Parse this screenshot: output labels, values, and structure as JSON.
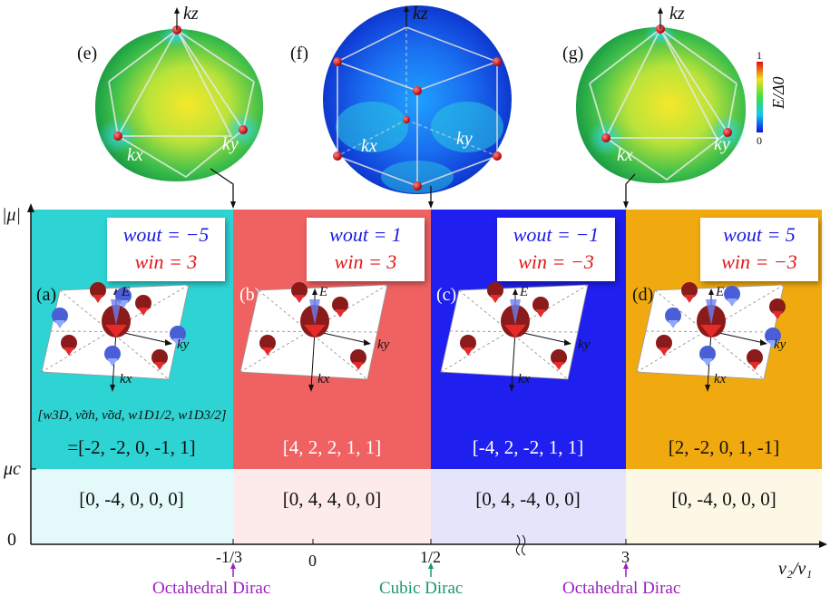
{
  "axes": {
    "y_label": "|μ|",
    "x_label": "v₂/v₁",
    "mu_c": "μc",
    "zero": "0"
  },
  "x_ticks": [
    "-1/3",
    "0",
    "1/2",
    "3"
  ],
  "transitions": [
    {
      "label": "Octahedral Dirac",
      "color": "#9b1fbf"
    },
    {
      "label": "Cubic Dirac",
      "color": "#1a9a6a"
    },
    {
      "label": "Octahedral Dirac",
      "color": "#9b1fbf"
    }
  ],
  "spheres": [
    {
      "label": "(e)",
      "kz": "kz",
      "kx": "kx",
      "ky": "ky"
    },
    {
      "label": "(f)",
      "kz": "kz",
      "kx": "kx",
      "ky": "ky"
    },
    {
      "label": "(g)",
      "kz": "kz",
      "kx": "kx",
      "ky": "ky"
    }
  ],
  "colorbar": {
    "max": "1",
    "min": "0",
    "label": "E/Δ0"
  },
  "vector_header": "[w3D, ν̃σh, ν̃σd, w1D1/2, w1D3/2]",
  "panels": [
    {
      "label": "(a)",
      "color": "#2ed3d3",
      "w_out": "wout = −5",
      "w_in": "win = 3",
      "upper_vec": "=[-2, -2, 0, -1, 1]",
      "lower_vec": "[0, -4, 0, 0, 0]",
      "lower_color": "#e4fafa"
    },
    {
      "label": "(b)",
      "color": "#f06161",
      "w_out": "wout = 1",
      "w_in": "win = 3",
      "upper_vec": "[4, 2, 2, 1, 1]",
      "lower_vec": "[0, 4, 4, 0, 0]",
      "lower_color": "#fdebeb"
    },
    {
      "label": "(c)",
      "color": "#1f1fef",
      "w_out": "wout = −1",
      "w_in": "win = −3",
      "upper_vec": "[-4, 2, -2, 1, 1]",
      "lower_vec": "[0, 4, -4, 0, 0]",
      "lower_color": "#e4e4fb"
    },
    {
      "label": "(d)",
      "color": "#f0aa10",
      "w_out": "wout = 5",
      "w_in": "win = −3",
      "upper_vec": "[2, -2, 0, 1, -1]",
      "lower_vec": "[0, -4, 0, 0, 0]",
      "lower_color": "#fdf7e6"
    }
  ],
  "inset_labels": {
    "E": "E",
    "kx": "kx",
    "ky": "ky"
  }
}
